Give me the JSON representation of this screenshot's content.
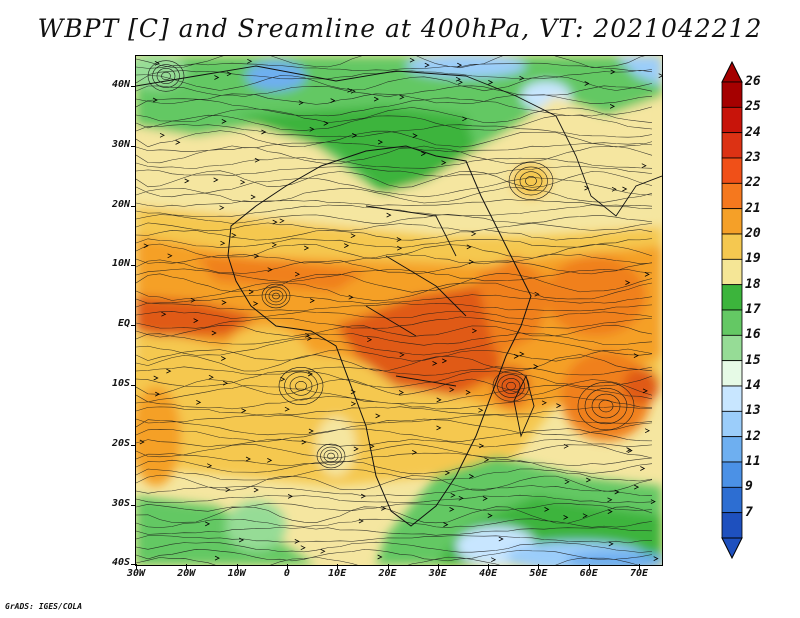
{
  "title": "WBPT [C] and Sreamline at 400hPa, VT: 2021042212",
  "credit": "GrADS: IGES/COLA",
  "map": {
    "lat_labels": [
      "40N",
      "30N",
      "20N",
      "10N",
      "EQ",
      "10S",
      "20S",
      "30S",
      "40S"
    ],
    "lon_labels": [
      "30W",
      "20W",
      "10W",
      "0",
      "10E",
      "20E",
      "30E",
      "40E",
      "50E",
      "60E",
      "70E"
    ]
  },
  "colorbar": {
    "labels": [
      "26",
      "25",
      "24",
      "23",
      "22",
      "21",
      "20",
      "19",
      "18",
      "17",
      "16",
      "15",
      "14",
      "13",
      "12",
      "11",
      "9",
      "7"
    ],
    "colors": [
      "#a50000",
      "#c8140a",
      "#dc3214",
      "#f05018",
      "#f5781e",
      "#f5a028",
      "#f5c850",
      "#f5e696",
      "#3cb43c",
      "#64c864",
      "#96dc96",
      "#e6fae6",
      "#c8e6ff",
      "#9bcdfa",
      "#6eaff0",
      "#4b91e6",
      "#2d6ed2",
      "#1e50be"
    ]
  },
  "fields": {
    "colors": {
      "green_light": "#96dc96",
      "green": "#64c864",
      "green_dark": "#3cb43c",
      "blue_light": "#c8e6ff",
      "blue": "#9bcdfa",
      "blue_dark": "#6eaff0",
      "cream": "#f5e6a0",
      "yellow": "#f5c850",
      "orange_light": "#f5a028",
      "orange": "#f0801e",
      "red_orange": "#e05a18"
    }
  }
}
